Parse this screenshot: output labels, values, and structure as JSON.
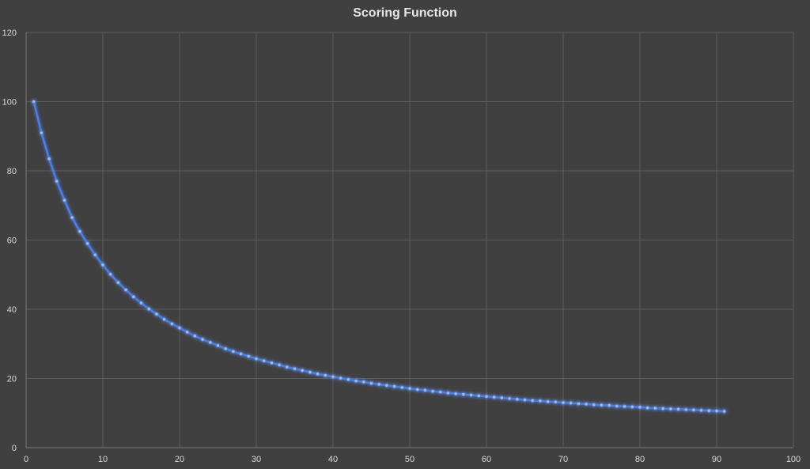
{
  "chart_data": {
    "type": "line",
    "title": "Scoring Function",
    "xlabel": "",
    "ylabel": "",
    "xlim": [
      0,
      100
    ],
    "ylim": [
      0,
      120
    ],
    "x_ticks": [
      0,
      10,
      20,
      30,
      40,
      50,
      60,
      70,
      80,
      90,
      100
    ],
    "y_ticks": [
      0,
      20,
      40,
      60,
      80,
      100,
      120
    ],
    "grid": true,
    "legend": "none",
    "colors": {
      "background": "#404040",
      "line": "#4a7fe6",
      "marker": "#9bbcf7",
      "grid": "#5c5c5c",
      "text": "#d9d9d9"
    },
    "series": [
      {
        "x": [
          1,
          2,
          3,
          4,
          5,
          6,
          7,
          8,
          9,
          10,
          11,
          12,
          13,
          14,
          15,
          16,
          17,
          18,
          19,
          20,
          21,
          22,
          23,
          24,
          25,
          26,
          27,
          28,
          29,
          30,
          31,
          32,
          33,
          34,
          35,
          36,
          37,
          38,
          39,
          40,
          41,
          42,
          43,
          44,
          45,
          46,
          47,
          48,
          49,
          50,
          51,
          52,
          53,
          54,
          55,
          56,
          57,
          58,
          59,
          60,
          61,
          62,
          63,
          64,
          65,
          66,
          67,
          68,
          69,
          70,
          71,
          72,
          73,
          74,
          75,
          76,
          77,
          78,
          79,
          80,
          81,
          82,
          83,
          84,
          85,
          86,
          87,
          88,
          89,
          90,
          91
        ],
        "y": [
          100,
          91,
          83.5,
          77,
          71.5,
          66.5,
          62.5,
          59,
          55.7,
          52.8,
          50.1,
          47.7,
          45.6,
          43.6,
          41.8,
          40.1,
          38.6,
          37.1,
          35.8,
          34.6,
          33.4,
          32.3,
          31.3,
          30.4,
          29.5,
          28.6,
          27.8,
          27.1,
          26.4,
          25.7,
          25.1,
          24.5,
          23.9,
          23.3,
          22.8,
          22.3,
          21.8,
          21.3,
          20.9,
          20.5,
          20.1,
          19.7,
          19.3,
          19.0,
          18.6,
          18.3,
          18.0,
          17.7,
          17.4,
          17.1,
          16.8,
          16.6,
          16.3,
          16.1,
          15.8,
          15.6,
          15.4,
          15.2,
          15.0,
          14.8,
          14.6,
          14.4,
          14.2,
          14.0,
          13.8,
          13.6,
          13.5,
          13.3,
          13.2,
          13.0,
          12.9,
          12.7,
          12.6,
          12.4,
          12.3,
          12.2,
          12.0,
          11.9,
          11.8,
          11.7,
          11.5,
          11.4,
          11.3,
          11.2,
          11.1,
          11.0,
          10.9,
          10.8,
          10.7,
          10.6,
          10.5
        ]
      }
    ]
  }
}
